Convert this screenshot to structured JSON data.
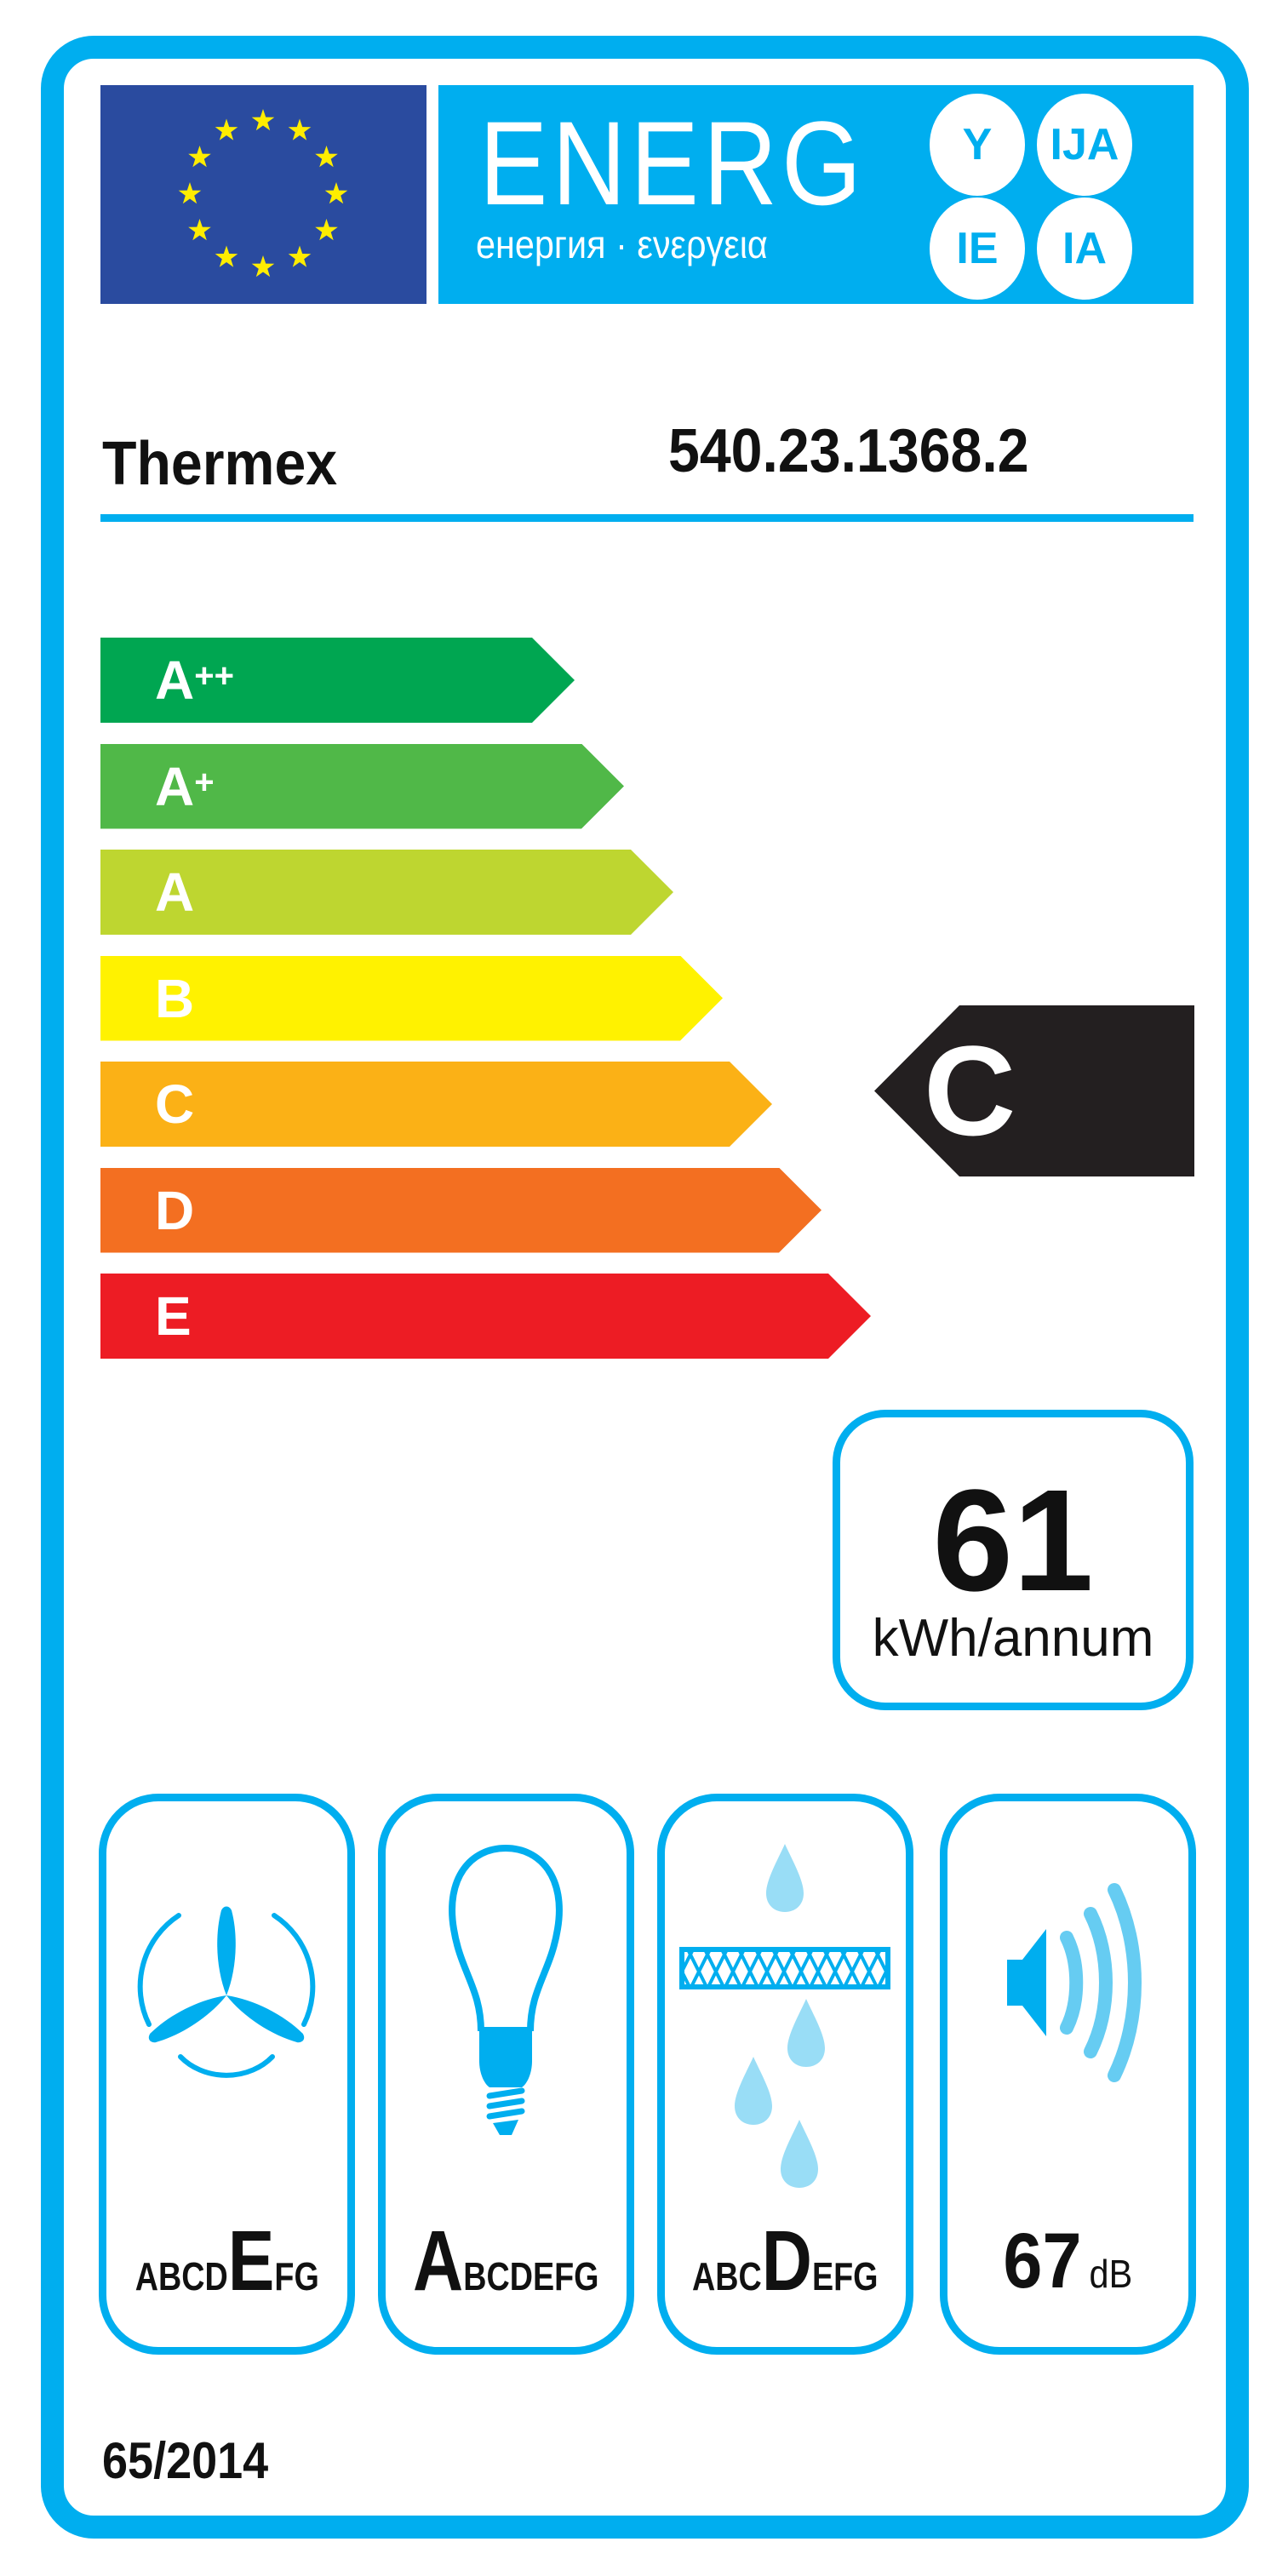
{
  "header": {
    "title": "ENERG",
    "subtitle": "енергия · ενεργεια",
    "suffixes": [
      "Y",
      "IJA",
      "IE",
      "IA"
    ],
    "flag_color": "#2A4B9F",
    "accent_color": "#00AEEF",
    "star_color": "#FFED00"
  },
  "product": {
    "brand": "Thermex",
    "model": "540.23.1368.2"
  },
  "classes": [
    {
      "base": "A",
      "sup": "++",
      "color": "#00A651"
    },
    {
      "base": "A",
      "sup": "+",
      "color": "#50B848"
    },
    {
      "base": "A",
      "sup": "",
      "color": "#BED630"
    },
    {
      "base": "B",
      "sup": "",
      "color": "#FFF200"
    },
    {
      "base": "C",
      "sup": "",
      "color": "#FBB116"
    },
    {
      "base": "D",
      "sup": "",
      "color": "#F36F21"
    },
    {
      "base": "E",
      "sup": "",
      "color": "#ED1C24"
    }
  ],
  "rating": {
    "class": "C",
    "color": "#231F20"
  },
  "consumption": {
    "value": "61",
    "unit": "kWh/annum"
  },
  "pictograms": [
    {
      "icon": "fan-icon",
      "letters": [
        "A",
        "B",
        "C",
        "D",
        "E",
        "F",
        "G"
      ],
      "active": "E"
    },
    {
      "icon": "light-bulb-icon",
      "letters": [
        "A",
        "B",
        "C",
        "D",
        "E",
        "F",
        "G"
      ],
      "active": "A"
    },
    {
      "icon": "grease-filter-icon",
      "letters": [
        "A",
        "B",
        "C",
        "D",
        "E",
        "F",
        "G"
      ],
      "active": "D"
    },
    {
      "icon": "speaker-icon",
      "value": "67",
      "unit": "dB"
    }
  ],
  "regulation": "65/2014"
}
